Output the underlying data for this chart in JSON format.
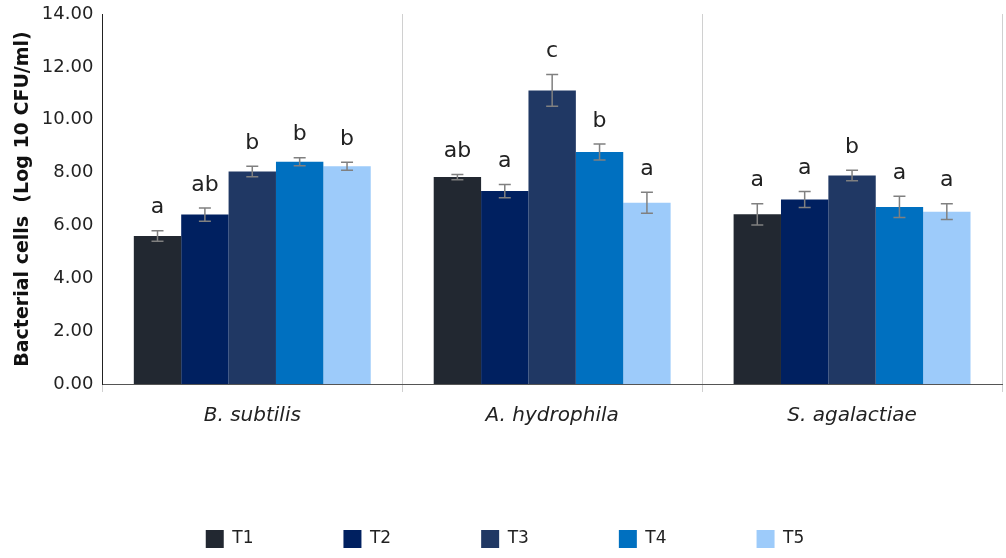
{
  "chart_data": {
    "type": "bar",
    "ylabel": "Bacterial cells  (Log 10 CFU/ml)",
    "categories": [
      "B. subtilis",
      "A. hydrophila",
      "S. agalactiae"
    ],
    "series": [
      {
        "name": "T1",
        "color": "#222831",
        "values": [
          5.6,
          7.83,
          6.42
        ],
        "errors": [
          0.2,
          0.1,
          0.4
        ],
        "value_labels": [
          "a",
          "ab",
          "a"
        ]
      },
      {
        "name": "T2",
        "color": "#002060",
        "values": [
          6.41,
          7.3,
          6.98
        ],
        "errors": [
          0.25,
          0.25,
          0.3
        ],
        "value_labels": [
          "ab",
          "a",
          "a"
        ]
      },
      {
        "name": "T3",
        "color": "#203864",
        "values": [
          8.04,
          11.11,
          7.89
        ],
        "errors": [
          0.2,
          0.6,
          0.2
        ],
        "value_labels": [
          "b",
          "c",
          "b"
        ]
      },
      {
        "name": "T4",
        "color": "#0070c0",
        "values": [
          8.41,
          8.78,
          6.7
        ],
        "errors": [
          0.15,
          0.3,
          0.4
        ],
        "value_labels": [
          "b",
          "b",
          "a"
        ]
      },
      {
        "name": "T5",
        "color": "#9dcbfa",
        "values": [
          8.24,
          6.86,
          6.52
        ],
        "errors": [
          0.15,
          0.4,
          0.3
        ],
        "value_labels": [
          "b",
          "a",
          "a"
        ]
      }
    ],
    "ylim": [
      0,
      14
    ],
    "yticks": [
      {
        "value": 0,
        "label": "0.00"
      },
      {
        "value": 2,
        "label": "2.00"
      },
      {
        "value": 4,
        "label": "4.00"
      },
      {
        "value": 6,
        "label": "6.00"
      },
      {
        "value": 8,
        "label": "8.00"
      },
      {
        "value": 10,
        "label": "10.00"
      },
      {
        "value": 12,
        "label": "12.00"
      },
      {
        "value": 14,
        "label": "14.00"
      }
    ],
    "grid": "x",
    "legend": "bottom"
  }
}
